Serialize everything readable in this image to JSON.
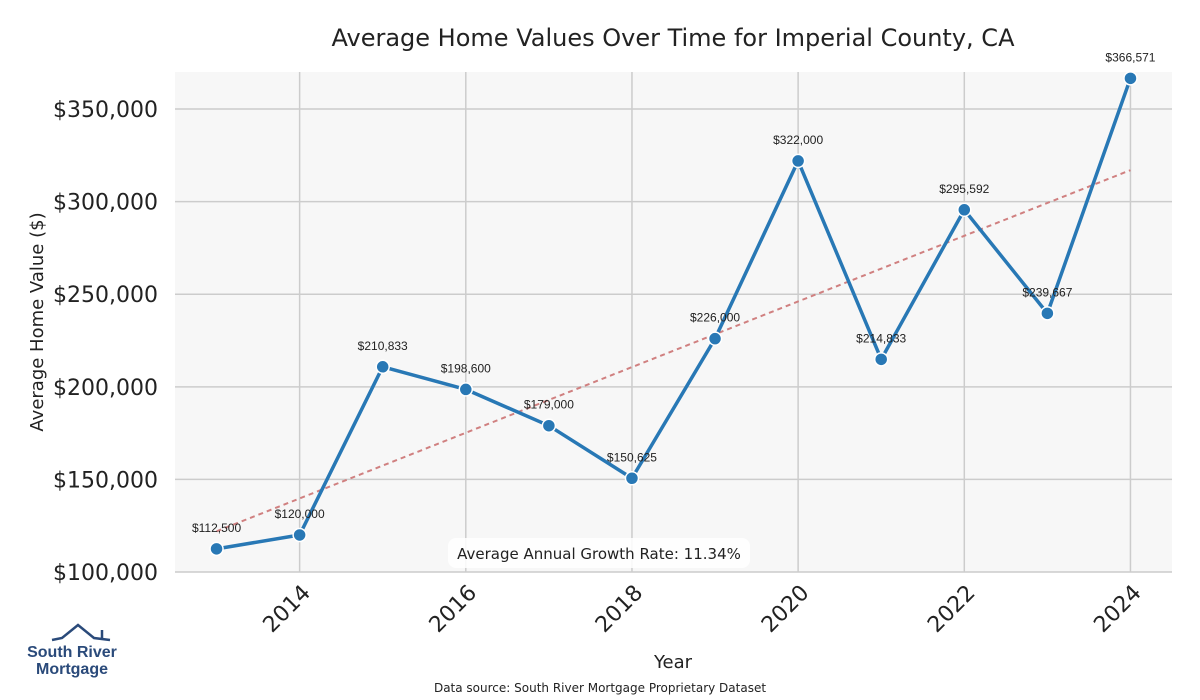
{
  "chart_data": {
    "type": "line",
    "title": "Average Home Values Over Time for Imperial County, CA",
    "xlabel": "Year",
    "ylabel": "Average Home Value ($)",
    "x": [
      2013,
      2014,
      2015,
      2016,
      2017,
      2018,
      2019,
      2020,
      2021,
      2022,
      2023,
      2024
    ],
    "series": [
      {
        "name": "Average Home Value",
        "values": [
          112500,
          120000,
          210833,
          198600,
          179000,
          150625,
          226000,
          322000,
          214833,
          295592,
          239667,
          366571
        ],
        "labels": [
          "$112,500",
          "$120,000",
          "$210,833",
          "$198,600",
          "$179,000",
          "$150,625",
          "$226,000",
          "$322,000",
          "$214,833",
          "$295,592",
          "$239,667",
          "$366,571"
        ],
        "color": "#2878b5"
      }
    ],
    "trendline": {
      "start": [
        2013,
        122000
      ],
      "end": [
        2024,
        317000
      ],
      "color": "#d08080"
    },
    "xlim": [
      2012.5,
      2024.5
    ],
    "ylim": [
      100000,
      370000
    ],
    "xticks": [
      2014,
      2016,
      2018,
      2020,
      2022,
      2024
    ],
    "xtick_labels": [
      "2014",
      "2016",
      "2018",
      "2020",
      "2022",
      "2024"
    ],
    "yticks": [
      100000,
      150000,
      200000,
      250000,
      300000,
      350000
    ],
    "ytick_labels": [
      "$100,000",
      "$150,000",
      "$200,000",
      "$250,000",
      "$300,000",
      "$350,000"
    ],
    "grid": true,
    "annotation": "Average Annual Growth Rate: 11.34%"
  },
  "footer": {
    "source": "Data source: South River Mortgage Proprietary Dataset"
  },
  "logo": {
    "line1": "South River",
    "line2": "Mortgage",
    "color": "#2a4a7a"
  }
}
